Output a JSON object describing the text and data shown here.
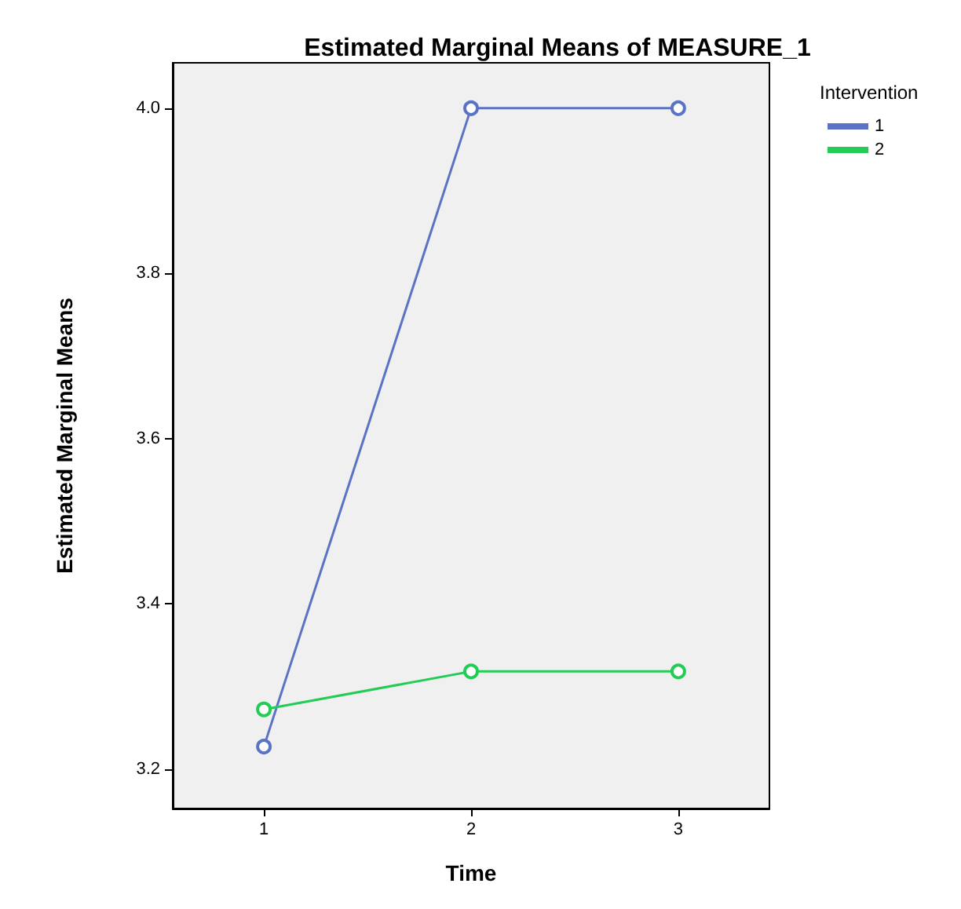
{
  "chart_data": {
    "type": "line",
    "title": "Estimated Marginal Means of MEASURE_1",
    "xlabel": "Time",
    "ylabel": "Estimated Marginal Means",
    "legend_title": "Intervention",
    "x": [
      1,
      2,
      3
    ],
    "xlim": [
      0.56,
      3.44
    ],
    "xticks": [
      1,
      2,
      3
    ],
    "ylim": [
      3.152,
      4.055
    ],
    "yticks": [
      3.2,
      3.4,
      3.6,
      3.8,
      {
        "value": 4,
        "label": "4.0"
      }
    ],
    "grid": false,
    "legend": "top right",
    "marker": "circle",
    "line_style": "solid",
    "series": [
      {
        "name": "1",
        "color": "#5b73c4",
        "values": [
          3.227,
          4.0,
          4.0
        ]
      },
      {
        "name": "2",
        "color": "#22cc55",
        "values": [
          3.272,
          3.318,
          3.318
        ]
      }
    ]
  }
}
